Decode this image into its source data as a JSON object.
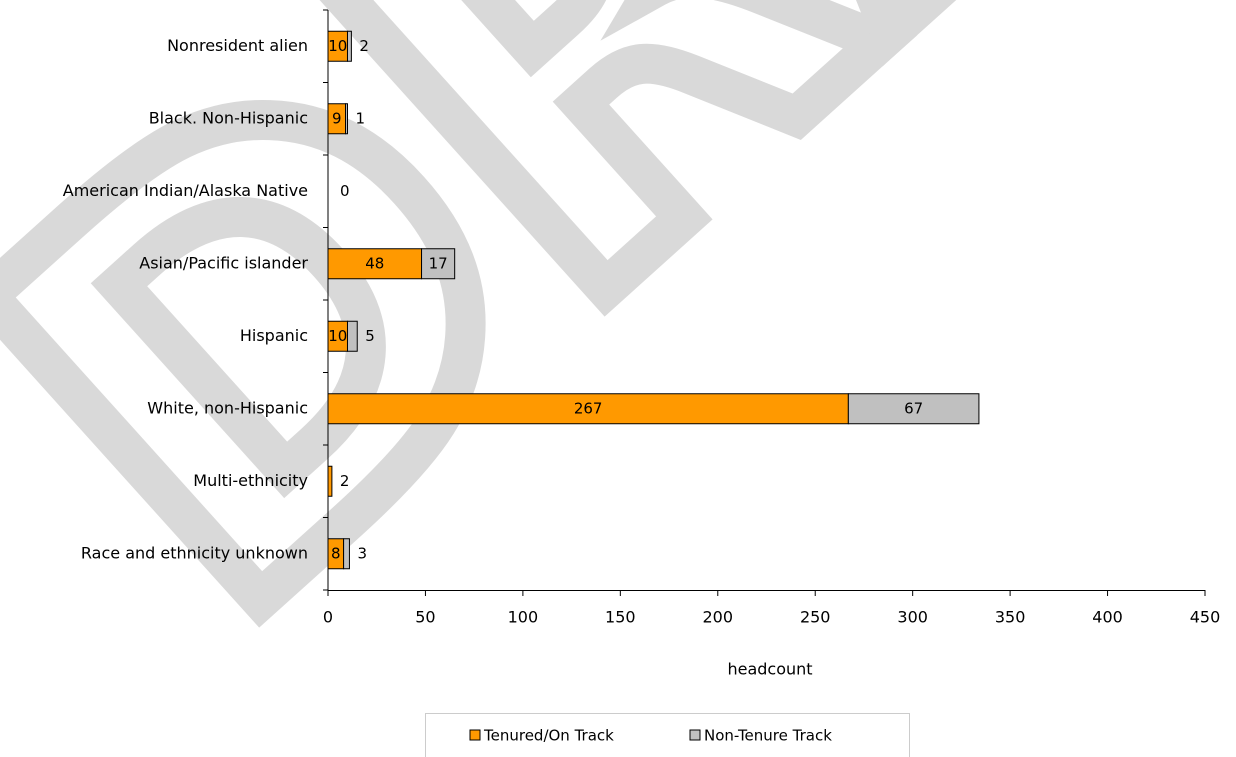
{
  "chart_data": {
    "type": "stacked-bar-horizontal",
    "watermark": "DRAFT",
    "categories": [
      "Nonresident alien",
      "Black. Non-Hispanic",
      "American Indian/Alaska Native",
      "Asian/Pacific islander",
      "Hispanic",
      "White, non-Hispanic",
      "Multi-ethnicity",
      "Race and ethnicity unknown"
    ],
    "series": [
      {
        "name": "Tenured/On Track",
        "color": "#ff9900",
        "values": [
          10,
          9,
          0,
          48,
          10,
          267,
          2,
          8
        ]
      },
      {
        "name": "Non-Tenure Track",
        "color": "#c0c0c0",
        "values": [
          2,
          1,
          null,
          17,
          5,
          67,
          null,
          3
        ]
      }
    ],
    "xlabel": "headcount",
    "xlim": [
      0,
      450
    ],
    "xticks": [
      0,
      50,
      100,
      150,
      200,
      250,
      300,
      350,
      400,
      450
    ],
    "legend": "bottom"
  }
}
